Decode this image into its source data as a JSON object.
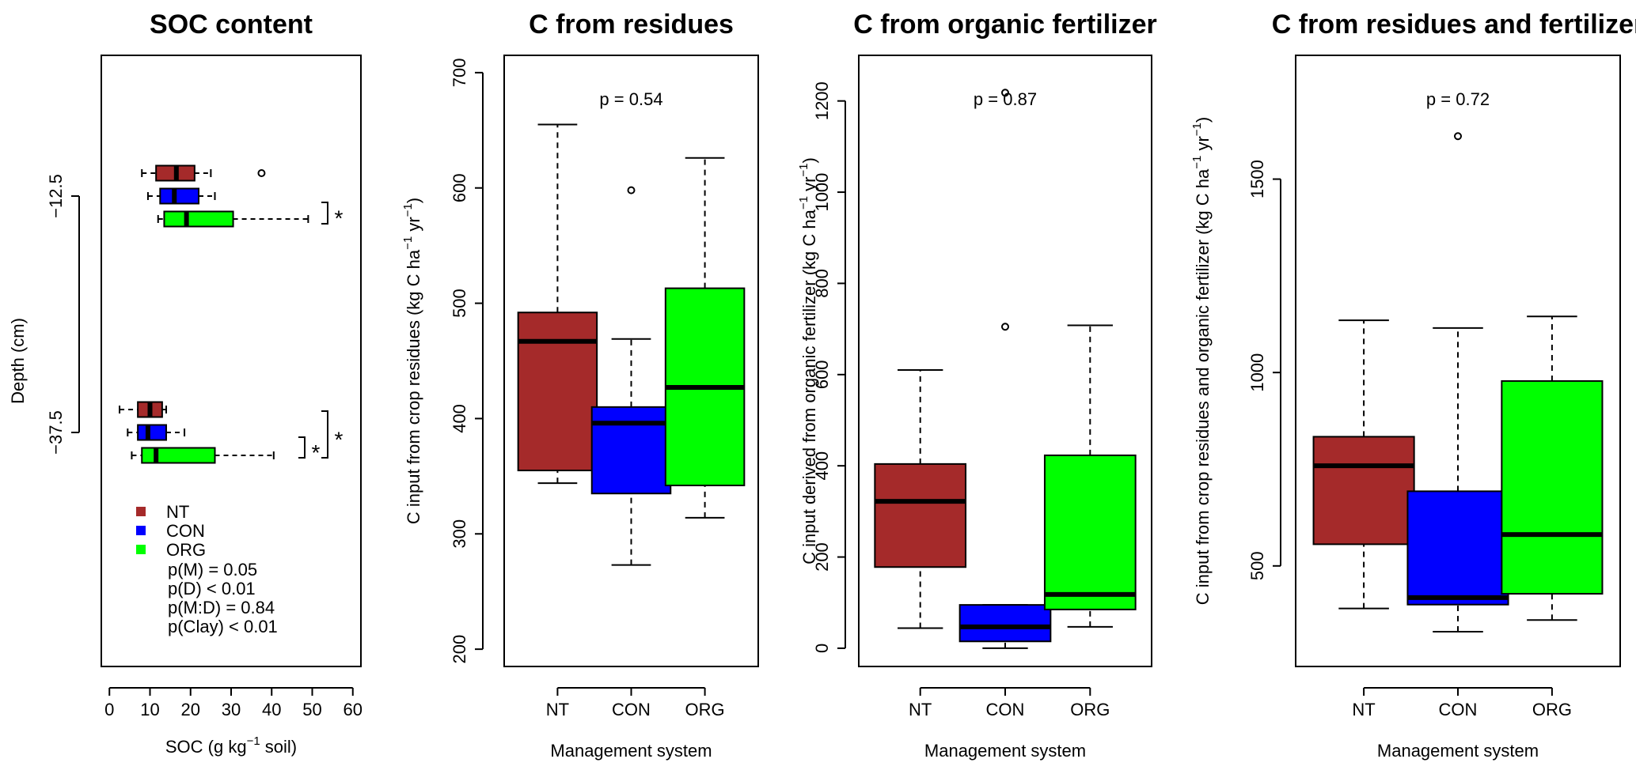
{
  "colors": {
    "NT": "#a52a2a",
    "CON": "#0000ff",
    "ORG": "#00ff00",
    "median": "#000000",
    "axis": "#000000",
    "background": "#ffffff"
  },
  "chart_data": [
    {
      "type": "boxplot",
      "orientation": "horizontal",
      "title": "SOC content",
      "xlabel_parts": [
        "SOC (g kg",
        "−1",
        " soil)"
      ],
      "ylabel": "Depth (cm)",
      "xlim": [
        -2,
        62
      ],
      "x_ticks": [
        0,
        10,
        20,
        30,
        40,
        50,
        60
      ],
      "x_tick_labels": [
        "0",
        "10",
        "20",
        "30",
        "40",
        "50",
        "60"
      ],
      "y_tick_labels": [
        "−12.5",
        "−37.5"
      ],
      "groups": [
        {
          "depth": "−12.5",
          "boxes": [
            {
              "system": "NT",
              "min": 8,
              "q1": 11.5,
              "median": 16.5,
              "q3": 21,
              "max": 25,
              "outliers": [
                37.5
              ]
            },
            {
              "system": "CON",
              "min": 9.5,
              "q1": 12.5,
              "median": 16,
              "q3": 22,
              "max": 26,
              "outliers": []
            },
            {
              "system": "ORG",
              "min": 12,
              "q1": 13.5,
              "median": 19,
              "q3": 30.5,
              "max": 49,
              "outliers": []
            }
          ],
          "significance": "*"
        },
        {
          "depth": "−37.5",
          "boxes": [
            {
              "system": "NT",
              "min": 2.5,
              "q1": 7,
              "median": 10,
              "q3": 13,
              "max": 14,
              "outliers": []
            },
            {
              "system": "CON",
              "min": 4.5,
              "q1": 7,
              "median": 9.5,
              "q3": 14,
              "max": 18.5,
              "outliers": []
            },
            {
              "system": "ORG",
              "min": 5.5,
              "q1": 8,
              "median": 11.5,
              "q3": 26,
              "max": 40.5,
              "outliers": []
            }
          ],
          "significance": [
            "*",
            "*"
          ]
        }
      ],
      "legend": {
        "items": [
          {
            "label": "NT",
            "color": "#a52a2a"
          },
          {
            "label": "CON",
            "color": "#0000ff"
          },
          {
            "label": "ORG",
            "color": "#00ff00"
          }
        ],
        "stats": [
          "p(M) = 0.05",
          "p(D) < 0.01",
          "p(M:D) = 0.84",
          "p(Clay) < 0.01"
        ]
      }
    },
    {
      "type": "boxplot",
      "orientation": "vertical",
      "title": "C from residues",
      "xlabel": "Management system",
      "ylabel_parts": [
        "C input from crop residues (kg C ha",
        "−1",
        " yr",
        "−1",
        ")"
      ],
      "ylim": [
        185,
        715
      ],
      "y_ticks": [
        200,
        300,
        400,
        500,
        600,
        700
      ],
      "y_tick_labels": [
        "200",
        "300",
        "400",
        "500",
        "600",
        "700"
      ],
      "categories": [
        "NT",
        "CON",
        "ORG"
      ],
      "p_value": "p = 0.54",
      "boxes": [
        {
          "system": "NT",
          "min": 344,
          "q1": 355,
          "median": 467,
          "q3": 492,
          "max": 655,
          "outliers": []
        },
        {
          "system": "CON",
          "min": 273,
          "q1": 335,
          "median": 396,
          "q3": 410,
          "max": 469,
          "outliers": [
            598
          ]
        },
        {
          "system": "ORG",
          "min": 314,
          "q1": 342,
          "median": 427,
          "q3": 513,
          "max": 626,
          "outliers": []
        }
      ]
    },
    {
      "type": "boxplot",
      "orientation": "vertical",
      "title": "C from organic fertilizer",
      "xlabel": "Management system",
      "ylabel_parts": [
        "C input derived from organic fertilizer (kg C ha",
        "−1",
        " yr",
        "−1",
        ")"
      ],
      "ylim": [
        -40,
        1300
      ],
      "y_ticks": [
        0,
        200,
        400,
        600,
        800,
        1000,
        1200
      ],
      "y_tick_labels": [
        "0",
        "200",
        "400",
        "600",
        "800",
        "1000",
        "1200"
      ],
      "categories": [
        "NT",
        "CON",
        "ORG"
      ],
      "p_value": "p = 0.87",
      "boxes": [
        {
          "system": "NT",
          "min": 44,
          "q1": 178,
          "median": 322,
          "q3": 404,
          "max": 610,
          "outliers": []
        },
        {
          "system": "CON",
          "min": 0,
          "q1": 15,
          "median": 47,
          "q3": 95,
          "max": 95,
          "outliers": [
            705,
            1218
          ]
        },
        {
          "system": "ORG",
          "min": 47,
          "q1": 85,
          "median": 118,
          "q3": 423,
          "max": 708,
          "outliers": []
        }
      ]
    },
    {
      "type": "boxplot",
      "orientation": "vertical",
      "title": "C from residues and fertilizer",
      "xlabel": "Management system",
      "ylabel_parts": [
        "C input from crop residues and organic fertilizer (kg C ha",
        "−1",
        " yr",
        "−1",
        ")"
      ],
      "ylim": [
        240,
        1820
      ],
      "y_ticks": [
        500,
        1000,
        1500
      ],
      "y_tick_labels": [
        "500",
        "1000",
        "1500"
      ],
      "categories": [
        "NT",
        "CON",
        "ORG"
      ],
      "p_value": "p = 0.72",
      "boxes": [
        {
          "system": "NT",
          "min": 390,
          "q1": 556,
          "median": 759,
          "q3": 834,
          "max": 1135,
          "outliers": []
        },
        {
          "system": "CON",
          "min": 330,
          "q1": 400,
          "median": 418,
          "q3": 693,
          "max": 1115,
          "outliers": [
            1611
          ]
        },
        {
          "system": "ORG",
          "min": 360,
          "q1": 428,
          "median": 581,
          "q3": 978,
          "max": 1145,
          "outliers": []
        }
      ]
    }
  ]
}
